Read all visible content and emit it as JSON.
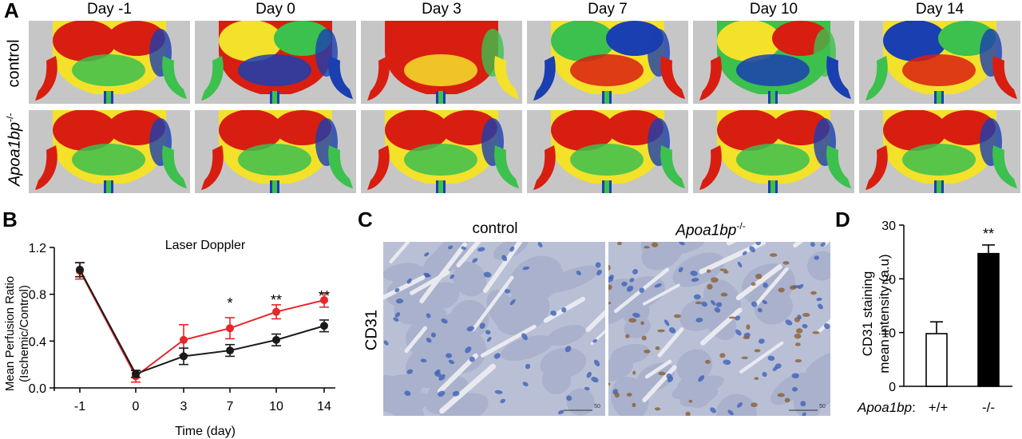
{
  "panel_a": {
    "letter": "A",
    "days": [
      "Day -1",
      "Day 0",
      "Day 3",
      "Day 7",
      "Day 10",
      "Day 14"
    ],
    "row_labels": {
      "control": "control",
      "knockout_gene": "Apoa1bp",
      "knockout_suffix": "-/-"
    },
    "heat_colors": {
      "high": "#d81e10",
      "mid_high": "#f4e12a",
      "mid": "#3cc04e",
      "low": "#1a3fb0",
      "background": "#c6c6c6"
    }
  },
  "chart_data": [
    {
      "id": "B",
      "type": "line",
      "title": "Laser Doppler",
      "xlabel": "Time (day)",
      "ylabel": "Mean Perfusion Ratio (Ischemic/Control)",
      "ylabel_lines": [
        "Mean Perfusion Ratio",
        "(Ischemic/Control)"
      ],
      "x": [
        -1,
        0,
        3,
        7,
        10,
        14
      ],
      "x_ticks": [
        "-1",
        "0",
        "3",
        "7",
        "10",
        "14"
      ],
      "y_ticks": [
        "0.0",
        "0.4",
        "0.8",
        "1.2"
      ],
      "ylim": [
        0.0,
        1.2
      ],
      "series": [
        {
          "color": "#e8262a",
          "values": [
            1.0,
            0.1,
            0.41,
            0.51,
            0.65,
            0.75
          ],
          "errors": [
            0.07,
            0.05,
            0.13,
            0.09,
            0.06,
            0.06
          ]
        },
        {
          "color": "#1a1a1a",
          "values": [
            1.01,
            0.12,
            0.27,
            0.32,
            0.41,
            0.53
          ],
          "errors": [
            0.06,
            0.03,
            0.07,
            0.05,
            0.05,
            0.05
          ]
        }
      ],
      "annotations": [
        {
          "x": 7,
          "text": "*"
        },
        {
          "x": 10,
          "text": "**"
        },
        {
          "x": 14,
          "text": "**"
        }
      ]
    },
    {
      "id": "D",
      "type": "bar",
      "categories": [
        "+/+",
        "-/-"
      ],
      "values": [
        9.8,
        24.7
      ],
      "errors": [
        2.2,
        1.6
      ],
      "bar_colors": [
        "#ffffff",
        "#000000"
      ],
      "ylabel_lines": [
        "CD31 staining",
        "mean intensity (a.u)"
      ],
      "y_ticks": [
        "0",
        "10",
        "20",
        "30"
      ],
      "ylim": [
        0,
        30
      ],
      "x_prefix": "Apoa1bp",
      "x_prefix_suffix": ":",
      "annotations": [
        {
          "category": "-/-",
          "text": "**"
        }
      ]
    }
  ],
  "panel_b": {
    "letter": "B"
  },
  "panel_c": {
    "letter": "C",
    "control_label": "control",
    "knockout_gene": "Apoa1bp",
    "knockout_suffix": "-/-",
    "stain_label": "CD31",
    "scale_text": "50",
    "tissue_colors": {
      "base": "#b9c0d6",
      "fiber": "#a9b1cc",
      "gap": "#e9eaf0",
      "nucleus": "#3f63b8",
      "brown": "#8a5a2a"
    }
  },
  "panel_d": {
    "letter": "D"
  }
}
